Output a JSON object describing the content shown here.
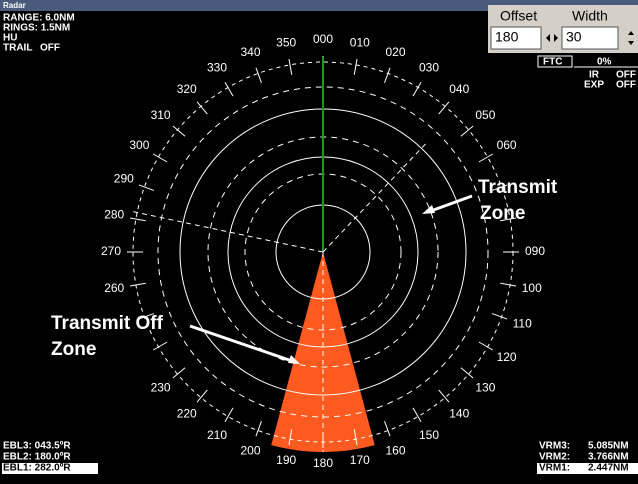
{
  "window_title": "Radar",
  "status": {
    "range": "RANGE: 6.0NM",
    "rings": "RINGS: 1.5NM",
    "orientation": "HU",
    "trail_label": "TRAIL",
    "trail_value": "OFF"
  },
  "panel": {
    "offset_label": "Offset",
    "width_label": "Width",
    "offset_value": "180",
    "width_value": "30",
    "ftc_label": "FTC",
    "ftc_value": "0%",
    "ir_label": "IR",
    "ir_value": "OFF",
    "exp_label": "EXP",
    "exp_value": "OFF"
  },
  "bearings": [
    "000",
    "010",
    "020",
    "030",
    "040",
    "050",
    "060",
    "090",
    "100",
    "110",
    "120",
    "130",
    "140",
    "150",
    "160",
    "170",
    "180",
    "190",
    "200",
    "210",
    "220",
    "230",
    "260",
    "270",
    "280",
    "290",
    "300",
    "310",
    "320",
    "330",
    "340",
    "350"
  ],
  "annotations": {
    "transmit_line1": "Transmit",
    "transmit_line2": "Zone",
    "off_line1": "Transmit Off",
    "off_line2": "Zone"
  },
  "ebl": [
    "EBL3: 043.5ºR",
    "EBL2: 180.0ºR",
    "EBL1: 282.0ºR"
  ],
  "vrm": [
    {
      "label": "VRM3:",
      "value": "5.085NM"
    },
    {
      "label": "VRM2:",
      "value": "3.766NM"
    },
    {
      "label": "VRM1:",
      "value": "2.447NM"
    }
  ]
}
